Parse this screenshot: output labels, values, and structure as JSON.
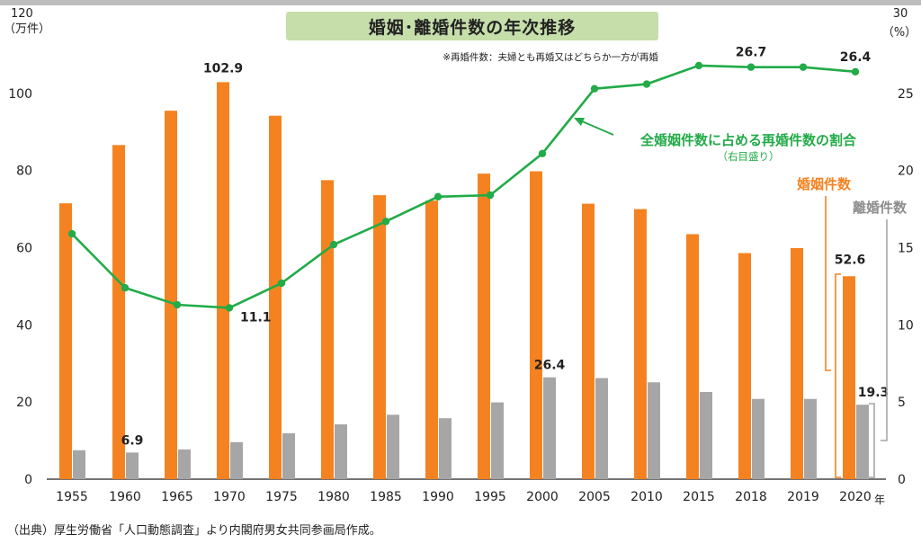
{
  "chart_data": {
    "type": "bar",
    "title": "婚姻･離婚件数の年次推移",
    "subtitle": "※再婚件数：夫婦とも再婚又はどちらか一方が再婚",
    "source": "（出典）厚生労働省「人口動態調査」より内閣府男女共同参画局作成。",
    "categories": [
      "1955",
      "1960",
      "1965",
      "1970",
      "1975",
      "1980",
      "1985",
      "1990",
      "1995",
      "2000",
      "2005",
      "2010",
      "2015",
      "2018",
      "2019",
      "2020"
    ],
    "x_unit": "年",
    "y_left": {
      "unit_top": "120",
      "unit_label": "（万件）",
      "ylim": [
        0,
        120
      ],
      "ticks": [
        0,
        20,
        40,
        60,
        80,
        100
      ]
    },
    "y_right": {
      "unit_top": "30",
      "unit_label": "（%）",
      "ylim": [
        0,
        30
      ],
      "ticks": [
        0,
        5,
        10,
        15,
        20,
        25
      ]
    },
    "grid": false,
    "series": [
      {
        "name": "婚姻件数",
        "axis": "left",
        "kind": "bar",
        "color": "#f58220",
        "values": [
          71.5,
          86.6,
          95.5,
          102.9,
          94.2,
          77.5,
          73.6,
          72.2,
          79.2,
          79.8,
          71.4,
          70.0,
          63.5,
          58.6,
          59.9,
          52.6
        ]
      },
      {
        "name": "離婚件数",
        "axis": "left",
        "kind": "bar",
        "color": "#a6a6a6",
        "values": [
          7.5,
          6.9,
          7.7,
          9.6,
          11.9,
          14.2,
          16.7,
          15.8,
          19.9,
          26.4,
          26.2,
          25.1,
          22.6,
          20.8,
          20.8,
          19.3
        ]
      },
      {
        "name": "全婚姻件数に占める再婚件数の割合",
        "axis": "right",
        "kind": "line",
        "color": "#22ab48",
        "values": [
          15.9,
          12.4,
          11.3,
          11.1,
          12.7,
          15.2,
          16.7,
          18.3,
          18.4,
          21.1,
          25.3,
          25.6,
          26.8,
          26.7,
          26.7,
          26.4
        ]
      }
    ],
    "data_labels": {
      "marriage": {
        "1970": "102.9",
        "2020": "52.6"
      },
      "divorce": {
        "1960": "6.9",
        "2000": "26.4",
        "2020": "19.3"
      },
      "remarriage": {
        "1970": "11.1",
        "2018": "26.7",
        "2020": "26.4"
      }
    },
    "annotations": {
      "line_label": "全婚姻件数に占める再婚件数の割合",
      "line_sublabel": "（右目盛り）",
      "marriage_label": "婚姻件数",
      "divorce_label": "離婚件数"
    }
  }
}
